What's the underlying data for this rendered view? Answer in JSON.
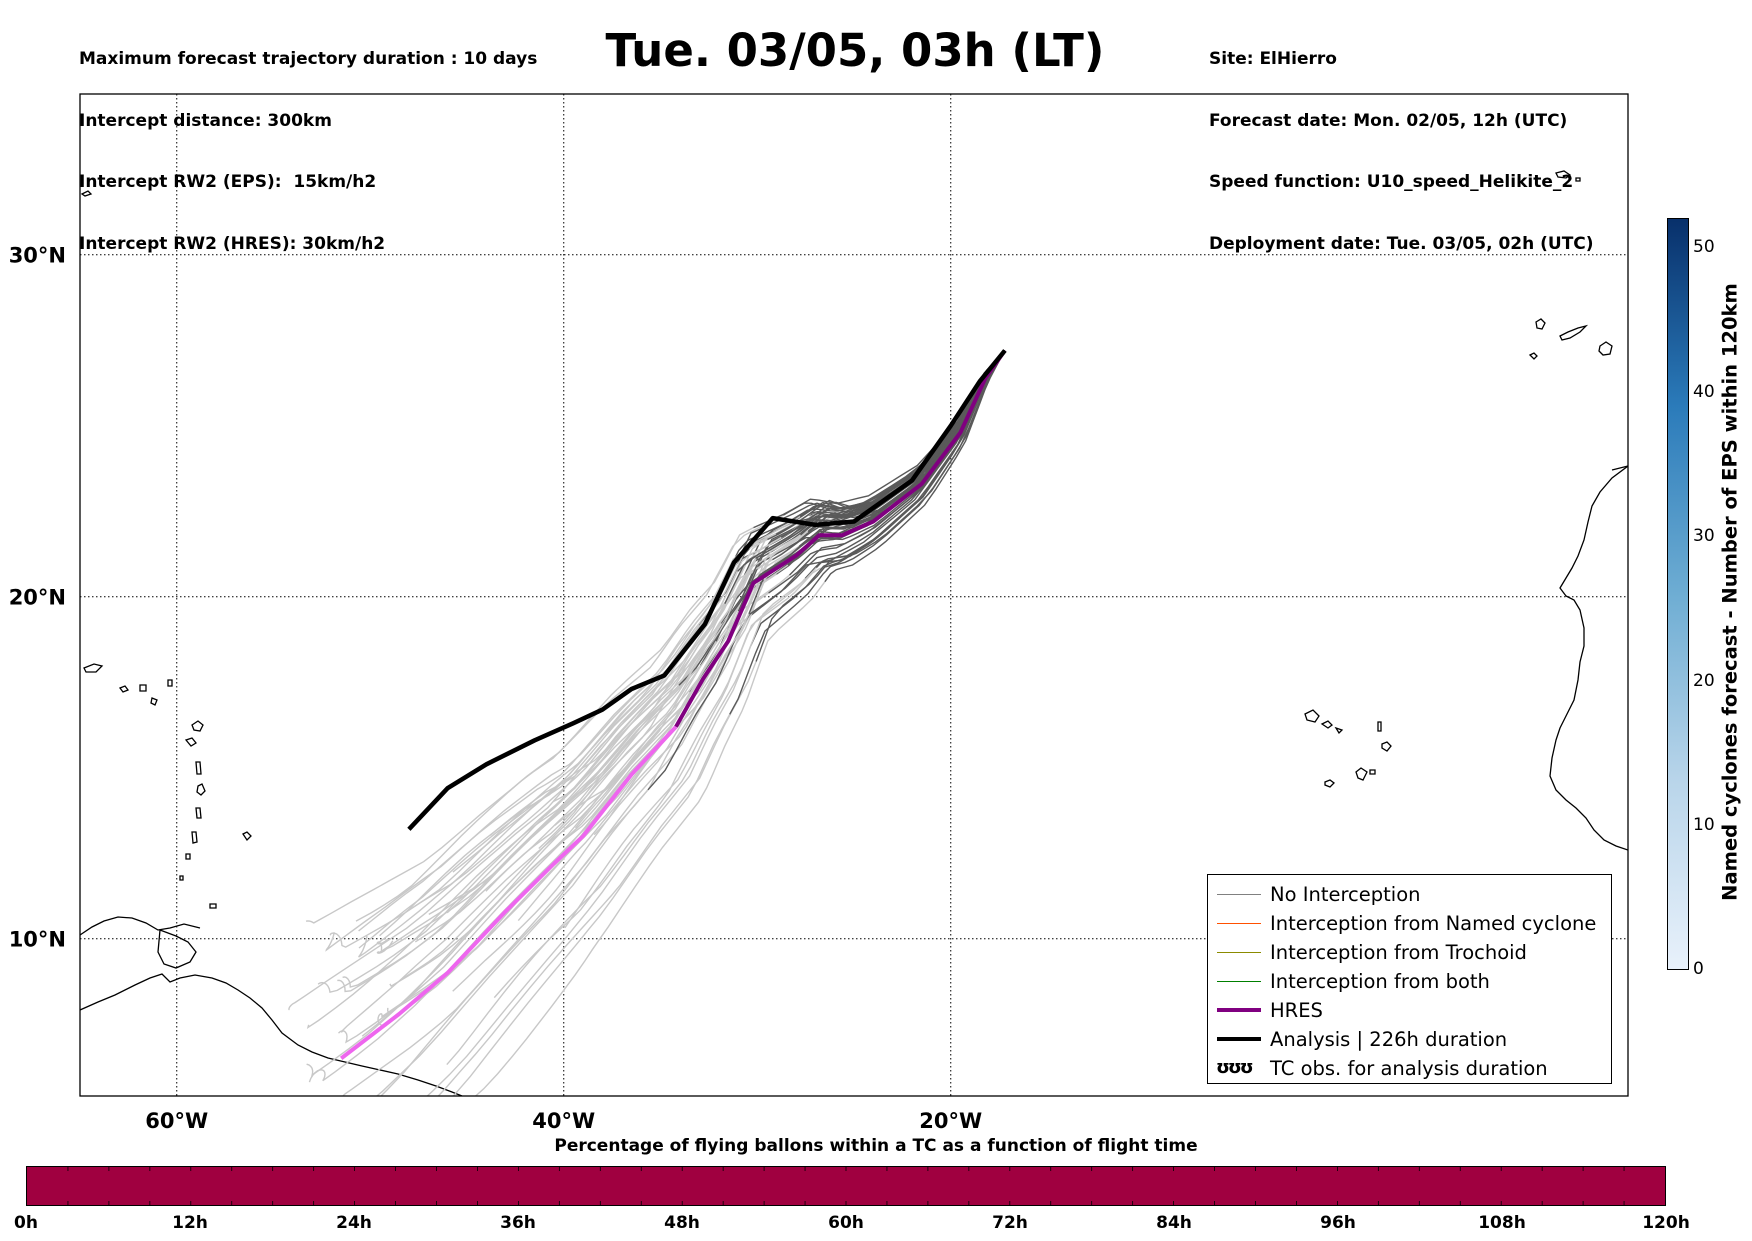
{
  "header": {
    "left_lines": [
      "Maximum forecast trajectory duration : 10 days",
      "Intercept distance: 300km",
      "Intercept RW2 (EPS):  15km/h2",
      "Intercept RW2 (HRES): 30km/h2"
    ],
    "title": "Tue. 03/05, 03h (LT)",
    "right_lines": [
      "Site: ElHierro",
      "Forecast date: Mon. 02/05, 12h (UTC)",
      "Speed function: U10_speed_Helikite_2",
      "Deployment date: Tue. 03/05, 02h (UTC)"
    ]
  },
  "map": {
    "lon_range": [
      -65,
      15
    ],
    "lat_range": [
      5.4,
      34.7
    ],
    "lon_labels": [
      "60°W",
      "40°W",
      "20°W"
    ],
    "lat_labels": [
      "30°N",
      "20°N",
      "10°N"
    ],
    "grid": "dotted"
  },
  "tracks": {
    "hres": [
      [
        -17.2,
        27.2
      ],
      [
        -18.2,
        26.4
      ],
      [
        -19.5,
        24.8
      ],
      [
        -21.5,
        23.3
      ],
      [
        -24,
        22.2
      ],
      [
        -25.6,
        21.8
      ],
      [
        -26.8,
        21.8
      ],
      [
        -28,
        21.2
      ],
      [
        -30.2,
        20.4
      ],
      [
        -31.5,
        18.7
      ],
      [
        -32.8,
        17.6
      ],
      [
        -34.2,
        16.2
      ],
      [
        -36.5,
        14.8
      ],
      [
        -39,
        13
      ],
      [
        -40.5,
        12.2
      ],
      [
        -43,
        10.8
      ],
      [
        -46,
        9
      ],
      [
        -48.5,
        7.8
      ],
      [
        -51.5,
        6.5
      ]
    ],
    "analysis": [
      [
        -17.2,
        27.2
      ],
      [
        -18.5,
        26.3
      ],
      [
        -20,
        25
      ],
      [
        -22,
        23.4
      ],
      [
        -25,
        22.2
      ],
      [
        -27,
        22.1
      ],
      [
        -29.2,
        22.3
      ],
      [
        -31.2,
        21
      ],
      [
        -32.7,
        19.2
      ],
      [
        -34.8,
        17.7
      ],
      [
        -36.5,
        17.3
      ],
      [
        -38,
        16.7
      ],
      [
        -39.5,
        16.3
      ],
      [
        -41.5,
        15.8
      ],
      [
        -44,
        15.1
      ],
      [
        -46,
        14.4
      ],
      [
        -48,
        13.2
      ]
    ],
    "eps_color": "#5a5a5a",
    "eps_light_color": "#c8c8c8",
    "hres_color": "#800080",
    "hres_light_color": "#ee66ee",
    "analysis_color": "#000000"
  },
  "legend": {
    "position": "lower-right",
    "items": [
      {
        "label": "No Interception",
        "color": "#808080",
        "width": 1.5
      },
      {
        "label": "Interception from Named cyclone",
        "color": "#ff5000",
        "width": 1.5
      },
      {
        "label": "Interception from Trochoid",
        "color": "#8b8b00",
        "width": 1.5
      },
      {
        "label": "Interception from both",
        "color": "#008000",
        "width": 1.5
      },
      {
        "label": "HRES",
        "color": "#800080",
        "width": 4
      },
      {
        "label": "Analysis | 226h duration",
        "color": "#000000",
        "width": 4
      },
      {
        "label": "TC obs. for analysis duration",
        "symbol": "ʊʊʊ"
      }
    ]
  },
  "colorbar_right": {
    "label": "Named cyclones forecast - Number of EPS within 120km",
    "ticks": [
      "50",
      "40",
      "30",
      "20",
      "10",
      "0"
    ],
    "range": [
      0,
      52
    ]
  },
  "colorbar_bottom": {
    "title": "Percentage of flying ballons within a TC as a function of flight time",
    "ticks": [
      "0h",
      "12h",
      "24h",
      "36h",
      "48h",
      "60h",
      "72h",
      "84h",
      "96h",
      "108h",
      "120h"
    ],
    "color": "#a00040"
  }
}
